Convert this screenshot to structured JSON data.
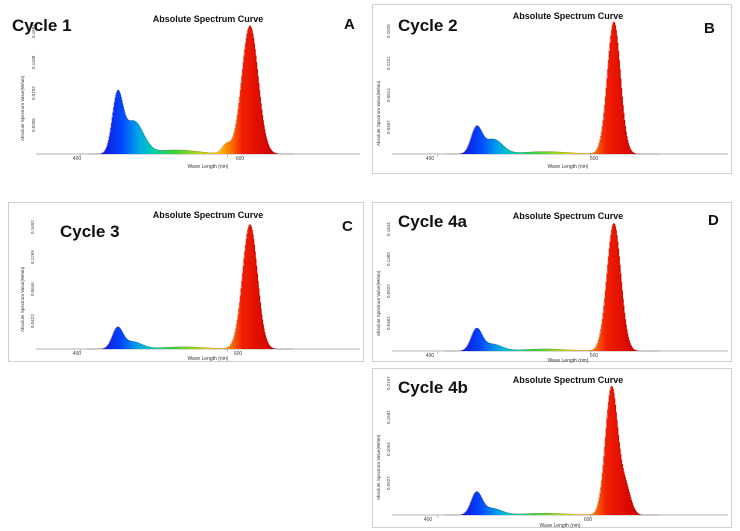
{
  "chart_data": [
    {
      "type": "area",
      "panel_id": "A",
      "cycle_label": "Cycle 1",
      "letter": "A",
      "title": "Absolute Spectrum Curve",
      "xlabel": "Wave Length (nm)",
      "ylabel": "Absolute Spectrum Value(W/nm)",
      "x_ticks": [
        "400",
        "600"
      ],
      "y_ticks": [
        "0.0396",
        "0.0792",
        "0.1188",
        "0.1584"
      ],
      "xlim": [
        340,
        780
      ],
      "ylim": [
        0,
        0.165
      ],
      "series": [
        {
          "peaks": [
            {
              "center": 450,
              "height": 0.0685,
              "sigma": 7
            },
            {
              "center": 472,
              "height": 0.04,
              "sigma": 13
            },
            {
              "center": 530,
              "height": 0.005,
              "sigma": 30
            },
            {
              "center": 598,
              "height": 0.011,
              "sigma": 6
            },
            {
              "center": 630,
              "height": 0.158,
              "sigma": 11
            }
          ]
        }
      ]
    },
    {
      "type": "area",
      "panel_id": "B",
      "cycle_label": "Cycle 2",
      "letter": "B",
      "title": "Absolute Spectrum Curve",
      "xlabel": "Wave Length (nm)",
      "ylabel": "Absolute Spectrum Value(W/nm)",
      "x_ticks": [
        "400",
        "600"
      ],
      "y_ticks": [
        "0.0407",
        "0.0814",
        "0.1221",
        "0.1628"
      ],
      "xlim": [
        340,
        780
      ],
      "ylim": [
        0,
        0.168
      ],
      "series": [
        {
          "peaks": [
            {
              "center": 450,
              "height": 0.031,
              "sigma": 7
            },
            {
              "center": 472,
              "height": 0.018,
              "sigma": 12
            },
            {
              "center": 540,
              "height": 0.003,
              "sigma": 30
            },
            {
              "center": 630,
              "height": 0.161,
              "sigma": 8.5
            }
          ]
        }
      ]
    },
    {
      "type": "area",
      "panel_id": "C",
      "cycle_label": "Cycle 3",
      "letter": "C",
      "title": "Absolute Spectrum Curve",
      "xlabel": "Wave Length (nm)",
      "ylabel": "Absolute Spectrum Value(W/nm)",
      "x_ticks": [
        "400",
        "600"
      ],
      "y_ticks": [
        "0.0423",
        "0.0846",
        "0.1269",
        "0.1692"
      ],
      "xlim": [
        340,
        780
      ],
      "ylim": [
        0,
        0.175
      ],
      "series": [
        {
          "peaks": [
            {
              "center": 450,
              "height": 0.027,
              "sigma": 7
            },
            {
              "center": 470,
              "height": 0.01,
              "sigma": 13
            },
            {
              "center": 540,
              "height": 0.003,
              "sigma": 30
            },
            {
              "center": 630,
              "height": 0.169,
              "sigma": 10
            }
          ]
        }
      ]
    },
    {
      "type": "area",
      "panel_id": "D",
      "cycle_label": "Cycle 4a",
      "letter": "D",
      "title": "Absolute Spectrum Curve",
      "xlabel": "Wave Length (nm)",
      "ylabel": "Absolute Spectrum Value(W/nm)",
      "x_ticks": [
        "400",
        "600"
      ],
      "y_ticks": [
        "0.0461",
        "0.0922",
        "0.1383",
        "0.1844"
      ],
      "xlim": [
        340,
        780
      ],
      "ylim": [
        0,
        0.19
      ],
      "series": [
        {
          "peaks": [
            {
              "center": 450,
              "height": 0.03,
              "sigma": 7
            },
            {
              "center": 470,
              "height": 0.01,
              "sigma": 13
            },
            {
              "center": 540,
              "height": 0.003,
              "sigma": 30
            },
            {
              "center": 630,
              "height": 0.184,
              "sigma": 9
            }
          ]
        }
      ]
    },
    {
      "type": "area",
      "panel_id": "E",
      "cycle_label": "Cycle 4b",
      "letter": "",
      "title": "Absolute Spectrum Curve",
      "xlabel": "Wave Length (nm)",
      "ylabel": "Absolute Spectrum Value(W/nm)",
      "x_ticks": [
        "400",
        "600"
      ],
      "y_ticks": [
        "0.0527",
        "0.1054",
        "0.1581",
        "0.2107"
      ],
      "xlim": [
        340,
        780
      ],
      "ylim": [
        0,
        0.215
      ],
      "series": [
        {
          "peaks": [
            {
              "center": 450,
              "height": 0.035,
              "sigma": 7
            },
            {
              "center": 470,
              "height": 0.011,
              "sigma": 13
            },
            {
              "center": 540,
              "height": 0.003,
              "sigma": 30
            },
            {
              "center": 627,
              "height": 0.21,
              "sigma": 8
            },
            {
              "center": 645,
              "height": 0.045,
              "sigma": 7
            }
          ]
        }
      ]
    }
  ]
}
